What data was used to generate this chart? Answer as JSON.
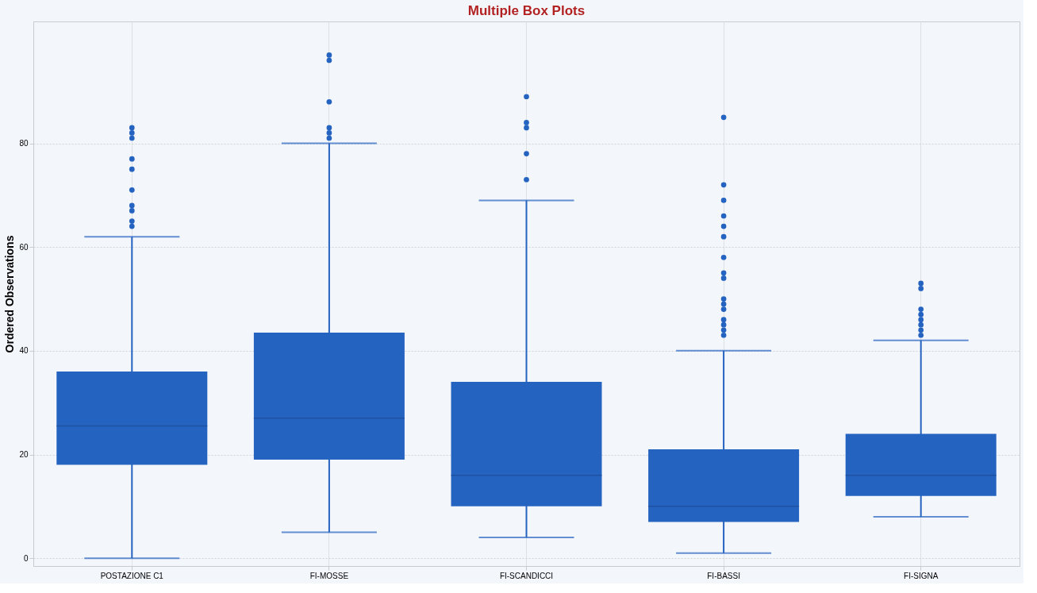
{
  "chart_data": {
    "type": "box",
    "title": "Multiple Box Plots",
    "ylabel": "Ordered Observations",
    "categories": [
      "POSTAZIONE C1",
      "FI-MOSSE",
      "FI-SCANDICCI",
      "FI-BASSI",
      "FI-SIGNA"
    ],
    "color": "#2563c0",
    "boxes": [
      {
        "low": 0,
        "q1": 18,
        "median": 25.5,
        "q3": 36,
        "high": 62,
        "outliers": [
          83,
          82,
          81,
          77,
          75,
          71,
          68,
          67,
          65,
          64
        ]
      },
      {
        "low": 5,
        "q1": 19,
        "median": 27,
        "q3": 43.5,
        "high": 80,
        "outliers": [
          97,
          96,
          88,
          83,
          82,
          81
        ]
      },
      {
        "low": 4,
        "q1": 10,
        "median": 16,
        "q3": 34,
        "high": 69,
        "outliers": [
          89,
          84,
          83,
          78,
          73
        ]
      },
      {
        "low": 1,
        "q1": 7,
        "median": 10,
        "q3": 21,
        "high": 40,
        "outliers": [
          85,
          72,
          69,
          66,
          64,
          62,
          58,
          55,
          54,
          50,
          49,
          48,
          46,
          45,
          44,
          43
        ]
      },
      {
        "low": 8,
        "q1": 12,
        "median": 16,
        "q3": 24,
        "high": 42,
        "outliers": [
          53,
          52,
          48,
          47,
          46,
          45,
          44,
          43
        ]
      }
    ],
    "ylim": [
      -1.5,
      103.5
    ],
    "yticks": [
      0,
      20,
      40,
      60,
      80
    ],
    "grid": true
  }
}
